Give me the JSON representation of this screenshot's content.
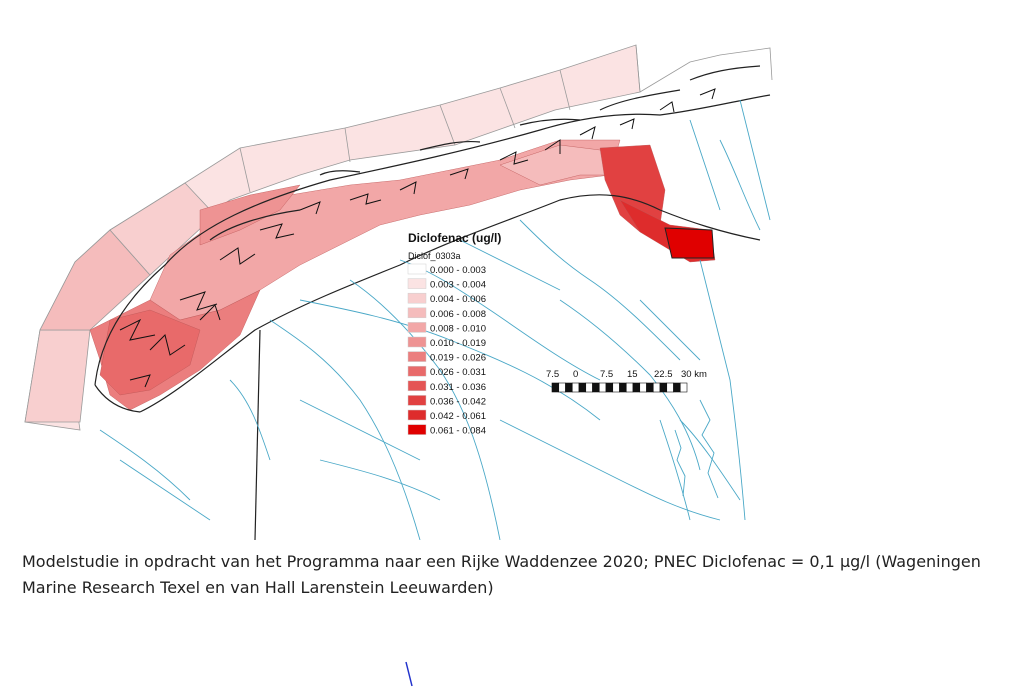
{
  "map": {
    "legend": {
      "title": "Diclofenac (ug/l)",
      "layer": "Diclof_0303a",
      "classes": [
        {
          "label": "0.000 - 0.003",
          "color": "#ffffff"
        },
        {
          "label": "0.003 - 0.004",
          "color": "#fbe3e3"
        },
        {
          "label": "0.004 - 0.006",
          "color": "#f8cfcf"
        },
        {
          "label": "0.006 - 0.008",
          "color": "#f5bcbc"
        },
        {
          "label": "0.008 - 0.010",
          "color": "#f2a7a7"
        },
        {
          "label": "0.010 - 0.019",
          "color": "#ee9393"
        },
        {
          "label": "0.019 - 0.026",
          "color": "#eb7e7e"
        },
        {
          "label": "0.026 - 0.031",
          "color": "#e86a6a"
        },
        {
          "label": "0.031 - 0.036",
          "color": "#e45555"
        },
        {
          "label": "0.036 - 0.042",
          "color": "#e14141"
        },
        {
          "label": "0.042 - 0.061",
          "color": "#de2c2c"
        },
        {
          "label": "0.061 - 0.084",
          "color": "#e00000"
        }
      ]
    },
    "scalebar": {
      "labels": [
        "7.5",
        "0",
        "7.5",
        "15",
        "22.5",
        "30 km"
      ]
    },
    "colors": {
      "water_lines": "#4aa8c7",
      "coastline": "#222222",
      "grid_lines": "#9a9a9a"
    }
  },
  "caption": {
    "line1": "Modelstudie in opdracht van het Programma naar een Rijke Waddenzee 2020; PNEC Diclofenac = 0,1 µg/l (Wageningen",
    "line2": "Marine Research Texel en van Hall Larenstein Leeuwarden)"
  }
}
